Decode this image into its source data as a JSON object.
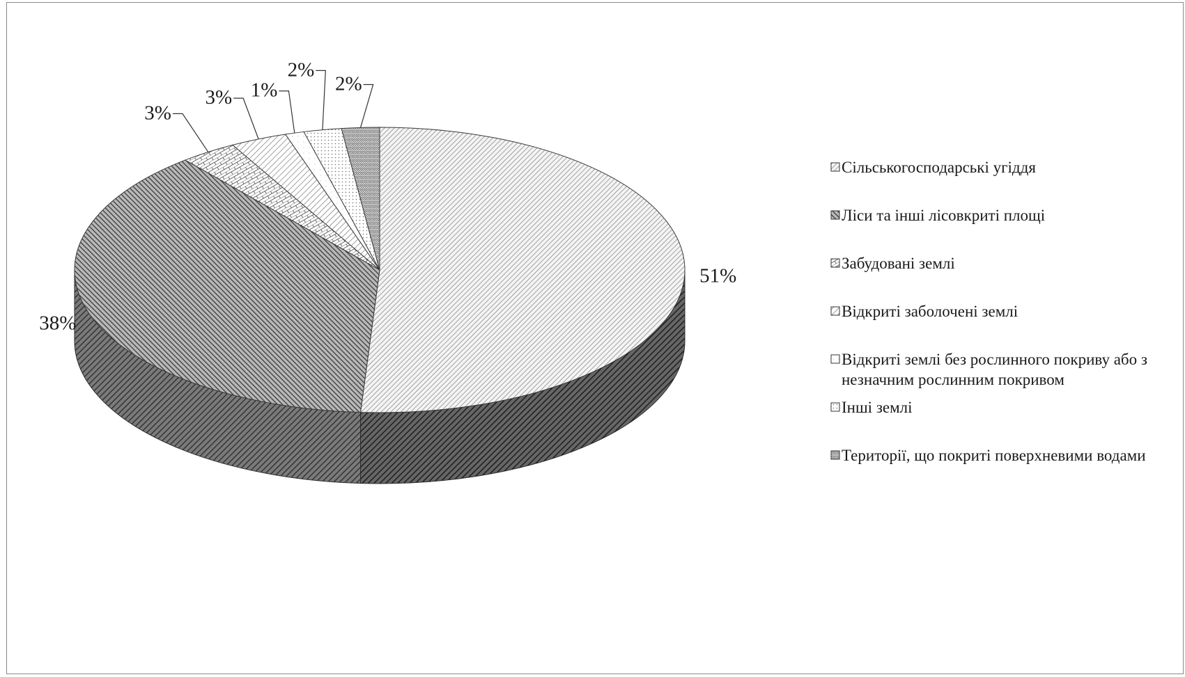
{
  "chart_data": {
    "type": "pie",
    "style": "3d",
    "title": "",
    "legend_position": "right",
    "slices": [
      {
        "label": "Сільськогосподарські угіддя",
        "value": 51,
        "pct_label": "51%",
        "pattern": "diag-light",
        "color": "#dcdcdc"
      },
      {
        "label": "Ліси та інші лісовкриті площі",
        "value": 38,
        "pct_label": "38%",
        "pattern": "diag-dark",
        "color": "#6a6a6a"
      },
      {
        "label": "Забудовані землі",
        "value": 3,
        "pct_label": "3%",
        "pattern": "brick",
        "color": "#f2f2f2"
      },
      {
        "label": "Відкриті заболочені землі",
        "value": 3,
        "pct_label": "3%",
        "pattern": "diag-fine",
        "color": "#e4e4e4"
      },
      {
        "label": "Відкриті землі без рослинного покриву або з незначним рослинним покривом",
        "value": 1,
        "pct_label": "1%",
        "pattern": "plain",
        "color": "#f8f8f8"
      },
      {
        "label": "Інші землі",
        "value": 2,
        "pct_label": "2%",
        "pattern": "dots",
        "color": "#f0f0f0"
      },
      {
        "label": "Території, що покриті поверхневими водами",
        "value": 2,
        "pct_label": "2%",
        "pattern": "zigzag",
        "color": "#e8e8e8"
      }
    ],
    "legend_lines": [
      [
        "Сільськогосподарські угіддя"
      ],
      [
        "Ліси та інші  лісовкриті  площі"
      ],
      [
        "Забудовані землі"
      ],
      [
        "Відкриті  заболочені землі"
      ],
      [
        "Відкриті  землі без рослинного  покриву  або з",
        "незначним  рослинним  покривом"
      ],
      [
        "Інші  землі"
      ],
      [
        "Території,  що покриті  поверхневими водами"
      ]
    ]
  }
}
